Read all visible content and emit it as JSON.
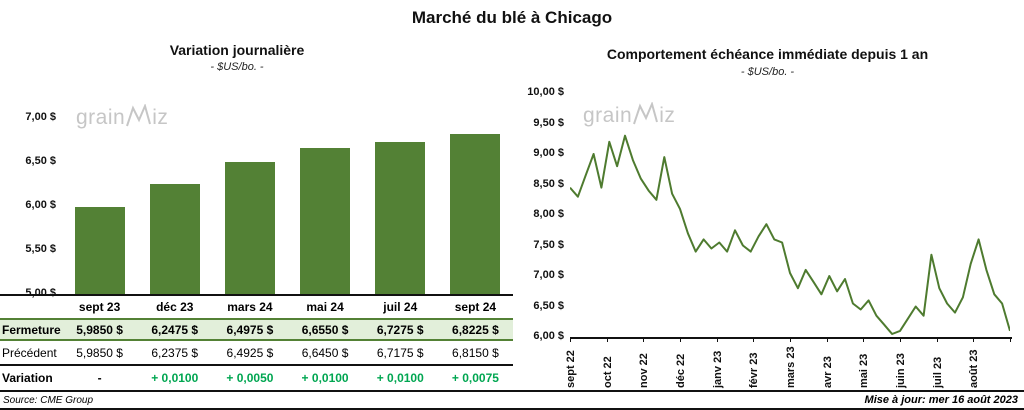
{
  "title": "Marché du blé à Chicago",
  "watermark": {
    "prefix": "grain",
    "suffix": "iz"
  },
  "footer": {
    "source": "Source: CME Group",
    "updated": "Mise à jour: mer 16 août 2023"
  },
  "colors": {
    "bar": "#538135",
    "line": "#4e7b2f",
    "fermeture_bg": "#e2efda",
    "variation_text": "#00a651",
    "watermark": "#c6c6c6"
  },
  "chart_data": [
    {
      "id": "variation-journaliere",
      "type": "bar",
      "title": "Variation  journalière",
      "subtitle": "- $US/bo. -",
      "categories": [
        "sept 23",
        "déc 23",
        "mars 24",
        "mai 24",
        "juil 24",
        "sept 24"
      ],
      "values": [
        5.985,
        6.2475,
        6.4975,
        6.655,
        6.7275,
        6.8225
      ],
      "ylim": [
        5.0,
        7.0
      ],
      "ytick_step": 0.5,
      "ytick_labels": [
        "5,00 $",
        "5,50 $",
        "6,00 $",
        "6,50 $",
        "7,00 $"
      ],
      "grid": false,
      "legend": "none"
    },
    {
      "id": "echeance-immediate",
      "type": "line",
      "title": "Comportement  échéance  immédiate  depuis 1 an",
      "subtitle": "- $US/bo. -",
      "x_labels": [
        "sept 22",
        "oct 22",
        "nov 22",
        "déc 22",
        "janv 23",
        "févr 23",
        "mars 23",
        "avr 23",
        "mai 23",
        "juin 23",
        "juil 23",
        "août 23"
      ],
      "values": [
        8.45,
        8.3,
        8.65,
        9.0,
        8.45,
        9.2,
        8.8,
        9.3,
        8.9,
        8.6,
        8.4,
        8.25,
        8.95,
        8.35,
        8.1,
        7.7,
        7.4,
        7.6,
        7.45,
        7.55,
        7.4,
        7.75,
        7.5,
        7.4,
        7.65,
        7.85,
        7.6,
        7.55,
        7.05,
        6.8,
        7.1,
        6.9,
        6.7,
        7.0,
        6.75,
        6.95,
        6.55,
        6.45,
        6.6,
        6.35,
        6.2,
        6.05,
        6.1,
        6.3,
        6.5,
        6.35,
        7.35,
        6.8,
        6.55,
        6.4,
        6.65,
        7.2,
        7.6,
        7.1,
        6.7,
        6.55,
        6.1
      ],
      "ylim": [
        6.0,
        10.0
      ],
      "ytick_step": 0.5,
      "ytick_labels": [
        "6,00 $",
        "6,50 $",
        "7,00 $",
        "7,50 $",
        "8,00 $",
        "8,50 $",
        "9,00 $",
        "9,50 $",
        "10,00 $"
      ],
      "grid": false,
      "legend": "none"
    }
  ],
  "table": {
    "rows": [
      {
        "label": "Fermeture",
        "values": [
          "5,9850 $",
          "6,2475 $",
          "6,4975 $",
          "6,6550 $",
          "6,7275 $",
          "6,8225 $"
        ]
      },
      {
        "label": "Précédent",
        "values": [
          "5,9850 $",
          "6,2375 $",
          "6,4925 $",
          "6,6450 $",
          "6,7175 $",
          "6,8150 $"
        ]
      },
      {
        "label": "Variation",
        "values": [
          "-",
          "+ 0,0100",
          "+ 0,0050",
          "+ 0,0100",
          "+ 0,0100",
          "+ 0,0075"
        ]
      }
    ]
  }
}
